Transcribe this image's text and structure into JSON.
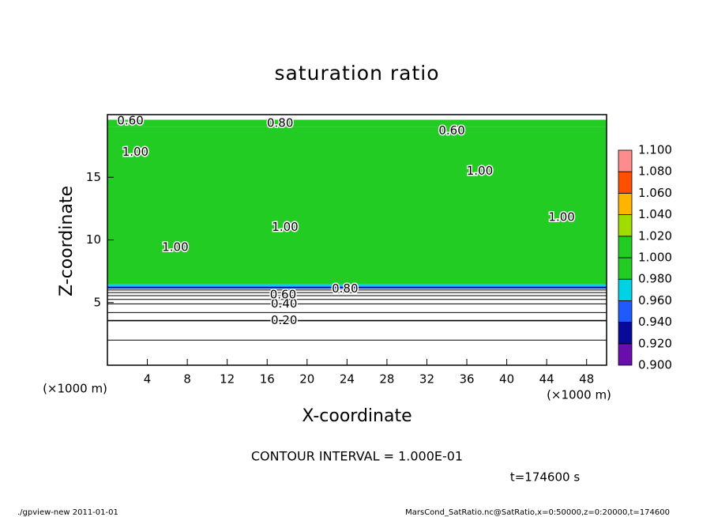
{
  "chart_data": {
    "type": "contour",
    "title": "saturation ratio",
    "xlabel": "X-coordinate",
    "ylabel": "Z-coordinate",
    "x_unit_label": "(×1000 m)",
    "y_unit_label": "(×1000 m)",
    "xlim": [
      0,
      50
    ],
    "xticks": [
      4,
      8,
      12,
      16,
      20,
      24,
      28,
      32,
      36,
      40,
      44,
      48
    ],
    "ylim": [
      0,
      20
    ],
    "yticks": [
      5,
      10,
      15
    ],
    "levels": [
      {
        "value": 0.9,
        "label": "0.900"
      },
      {
        "value": 0.92,
        "label": "0.920"
      },
      {
        "value": 0.94,
        "label": "0.940"
      },
      {
        "value": 0.96,
        "label": "0.960"
      },
      {
        "value": 0.98,
        "label": "0.980"
      },
      {
        "value": 1.0,
        "label": "1.000"
      },
      {
        "value": 1.02,
        "label": "1.020"
      },
      {
        "value": 1.04,
        "label": "1.040"
      },
      {
        "value": 1.06,
        "label": "1.060"
      },
      {
        "value": 1.08,
        "label": "1.080"
      },
      {
        "value": 1.1,
        "label": "1.100"
      }
    ],
    "colors": [
      "#6a0dad",
      "#0a0a9a",
      "#1e5aff",
      "#00d2e6",
      "#22cc22",
      "#22cc22",
      "#a0dc00",
      "#ffb400",
      "#ff5000",
      "#ff8c8c"
    ],
    "field": {
      "z_bins": [
        0,
        6.1,
        6.3,
        6.5,
        19.0,
        19.6,
        20
      ],
      "values": [
        0.3,
        0.94,
        0.97,
        0.995,
        0.99,
        0.7
      ]
    },
    "contours": {
      "levels": [
        0.1,
        0.2,
        0.3,
        0.4,
        0.5,
        0.6,
        0.7,
        0.8,
        0.9
      ],
      "z": [
        2.0,
        3.56,
        4.2,
        4.9,
        5.25,
        5.55,
        5.8,
        6.0,
        6.2
      ]
    },
    "contour_labels": [
      {
        "text": "0.20",
        "x": 17.7,
        "z": 3.56
      },
      {
        "text": "0.40",
        "x": 17.7,
        "z": 4.9
      },
      {
        "text": "0.60",
        "x": 17.6,
        "z": 5.6
      },
      {
        "text": "0.80",
        "x": 23.8,
        "z": 6.1
      },
      {
        "text": "0.60",
        "x": 2.3,
        "z": 19.5
      },
      {
        "text": "0.80",
        "x": 17.3,
        "z": 19.3
      },
      {
        "text": "0.60",
        "x": 34.5,
        "z": 18.7
      },
      {
        "text": "1.00",
        "x": 2.8,
        "z": 17.0
      },
      {
        "text": "1.00",
        "x": 6.8,
        "z": 9.4
      },
      {
        "text": "1.00",
        "x": 17.8,
        "z": 11.0
      },
      {
        "text": "1.00",
        "x": 37.3,
        "z": 15.5
      },
      {
        "text": "1.00",
        "x": 45.5,
        "z": 11.8
      }
    ],
    "contour_interval": "CONTOUR INTERVAL = 1.000E-01",
    "time_label": "t=174600 s",
    "footer_left": "./gpview-new   2011-01-01",
    "footer_right": "MarsCond_SatRatio.nc@SatRatio,x=0:50000,z=0:20000,t=174600"
  }
}
